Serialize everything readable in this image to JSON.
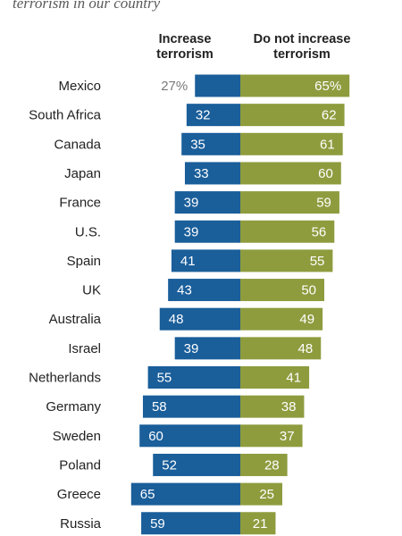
{
  "subtitle_top_line": "",
  "subtitle_line": "terrorism in our country",
  "chart_data": {
    "type": "bar",
    "orientation": "horizontal-diverging",
    "categories": [
      "Mexico",
      "South Africa",
      "Canada",
      "Japan",
      "France",
      "U.S.",
      "Spain",
      "UK",
      "Australia",
      "Israel",
      "Netherlands",
      "Germany",
      "Sweden",
      "Poland",
      "Greece",
      "Russia"
    ],
    "series": [
      {
        "name": "Increase\nterrorism",
        "direction": "left",
        "color": "#1a5e9a",
        "values": [
          27,
          32,
          35,
          33,
          39,
          39,
          41,
          43,
          48,
          39,
          55,
          58,
          60,
          52,
          65,
          59
        ],
        "labels": [
          "27%",
          "32",
          "35",
          "33",
          "39",
          "39",
          "41",
          "43",
          "48",
          "39",
          "55",
          "58",
          "60",
          "52",
          "65",
          "59"
        ]
      },
      {
        "name": "Do not increase\nterrorism",
        "direction": "right",
        "color": "#8e9c3e",
        "values": [
          65,
          62,
          61,
          60,
          59,
          56,
          55,
          50,
          49,
          48,
          41,
          38,
          37,
          28,
          25,
          21
        ],
        "labels": [
          "65%",
          "62",
          "61",
          "60",
          "59",
          "56",
          "55",
          "50",
          "49",
          "48",
          "41",
          "38",
          "37",
          "28",
          "25",
          "21"
        ]
      }
    ],
    "title": "",
    "xlabel": "",
    "ylabel": "",
    "grid": false,
    "legend": "top (column headers)"
  }
}
